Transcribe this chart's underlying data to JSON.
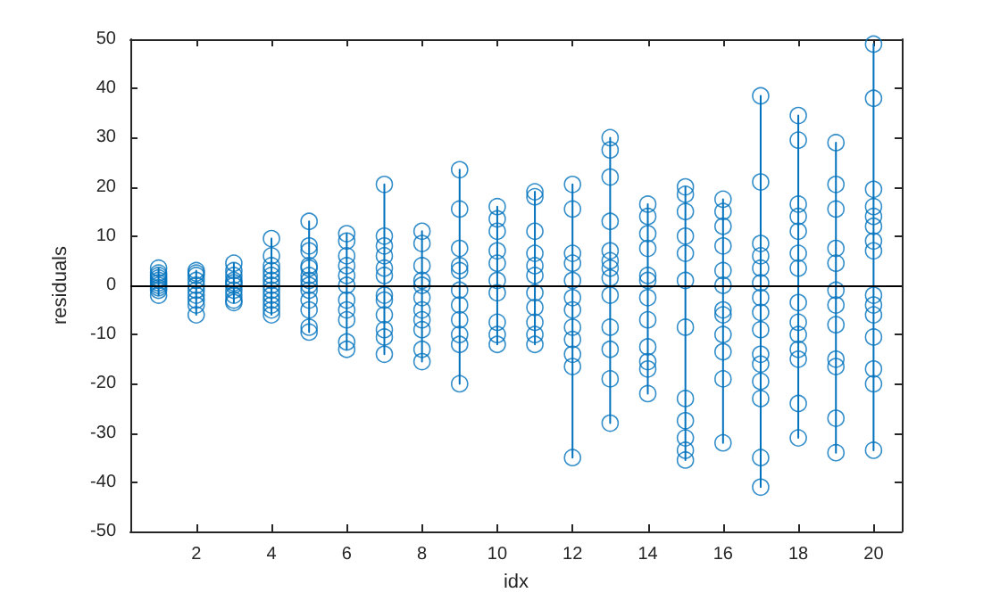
{
  "chart_data": {
    "type": "scatter",
    "xlabel": "idx",
    "ylabel": "residuals",
    "marker": "circle",
    "grid": false,
    "xlim": [
      0.25,
      20.75
    ],
    "xticks": [
      2,
      4,
      6,
      8,
      10,
      12,
      14,
      16,
      18,
      20
    ],
    "ylim": [
      -50,
      50
    ],
    "yticks": [
      -50,
      -40,
      -30,
      -20,
      -10,
      0,
      10,
      20,
      30,
      40,
      50
    ],
    "ref_lines": [
      {
        "axis": "y",
        "value": 0,
        "color": "#000000"
      }
    ],
    "series": [
      {
        "color": "#0072bd",
        "x": [
          1,
          1,
          1,
          1,
          1,
          1,
          1,
          1,
          1,
          1,
          2,
          2,
          2,
          2,
          2,
          2,
          2,
          2,
          2,
          2,
          3,
          3,
          3,
          3,
          3,
          3,
          3,
          3,
          3,
          3,
          4,
          4,
          4,
          4,
          4,
          4,
          4,
          4,
          4,
          4,
          4,
          4,
          4,
          5,
          5,
          5,
          5,
          5,
          5,
          5,
          5,
          5,
          5,
          5,
          5,
          5,
          6,
          6,
          6,
          6,
          6,
          6,
          6,
          6,
          6,
          6,
          6,
          7,
          7,
          7,
          7,
          7,
          7,
          7,
          7,
          7,
          7,
          7,
          7,
          8,
          8,
          8,
          8,
          8,
          8,
          8,
          8,
          8,
          8,
          8,
          9,
          9,
          9,
          9,
          9,
          9,
          9,
          9,
          9,
          9,
          9,
          10,
          10,
          10,
          10,
          10,
          10,
          10,
          10,
          10,
          10,
          11,
          11,
          11,
          11,
          11,
          11,
          11,
          11,
          11,
          11,
          11,
          12,
          12,
          12,
          12,
          12,
          12,
          12,
          12,
          12,
          12,
          12,
          12,
          13,
          13,
          13,
          13,
          13,
          13,
          13,
          13,
          13,
          13,
          13,
          13,
          13,
          14,
          14,
          14,
          14,
          14,
          14,
          14,
          14,
          14,
          14,
          14,
          14,
          15,
          15,
          15,
          15,
          15,
          15,
          15,
          15,
          15,
          15,
          15,
          15,
          16,
          16,
          16,
          16,
          16,
          16,
          16,
          16,
          16,
          16,
          16,
          16,
          17,
          17,
          17,
          17,
          17,
          17,
          17,
          17,
          17,
          17,
          17,
          17,
          17,
          17,
          17,
          18,
          18,
          18,
          18,
          18,
          18,
          18,
          18,
          18,
          18,
          18,
          18,
          18,
          18,
          19,
          19,
          19,
          19,
          19,
          19,
          19,
          19,
          19,
          19,
          19,
          19,
          20,
          20,
          20,
          20,
          20,
          20,
          20,
          20,
          20,
          20,
          20,
          20,
          20,
          20,
          20
        ],
        "values": [
          3.5,
          2.5,
          2,
          1.5,
          1,
          0.5,
          0,
          -0.5,
          -1,
          -2,
          3,
          2.5,
          2,
          1,
          0,
          -1,
          -2,
          -3,
          -4,
          -6,
          4.5,
          3,
          2,
          1,
          0.5,
          0,
          -1,
          -2,
          -3,
          -3.5,
          9.5,
          6,
          4,
          3,
          2,
          1,
          0,
          -1,
          -2,
          -3,
          -4,
          -5,
          -6,
          13,
          8,
          7,
          4,
          3.5,
          2,
          1,
          0,
          -1,
          -3,
          -5,
          -8.5,
          -9.5,
          10.5,
          9,
          6,
          4,
          2,
          0,
          -3,
          -5,
          -7,
          -11.5,
          -13,
          20.5,
          10,
          8,
          6,
          3.5,
          2,
          -2,
          -3,
          -6,
          -9,
          -10.5,
          -14,
          11,
          8.5,
          4,
          1,
          0,
          -2.5,
          -5,
          -7,
          -9,
          -13,
          -15.5,
          23.5,
          15.5,
          7.5,
          4,
          3,
          -1,
          -4,
          -7,
          -10,
          -12,
          -20,
          16,
          13.5,
          11,
          7,
          4.5,
          1,
          -1.5,
          -7.5,
          -10,
          -12,
          19,
          18,
          11,
          6.5,
          4,
          2,
          -1.5,
          -4.5,
          -7.5,
          -10,
          -12,
          20.5,
          15.5,
          6.5,
          4.5,
          1,
          -2.5,
          -5,
          -8.5,
          -11,
          -14,
          -16.5,
          -35,
          30,
          27.5,
          22,
          13,
          7,
          5,
          3.5,
          1.5,
          -2,
          -8.5,
          -13,
          -19,
          -28,
          16.5,
          14,
          10.5,
          7.5,
          2,
          1,
          -2.5,
          -7,
          -12.5,
          -15.5,
          -17,
          -22,
          20,
          18.5,
          15,
          10,
          6.5,
          1,
          -8.5,
          -23,
          -27.5,
          -31,
          -33.5,
          -35.5,
          17.5,
          15,
          12,
          8,
          3,
          0,
          -5,
          -6,
          -10,
          -13.5,
          -19,
          -32,
          38.5,
          21,
          8.5,
          6,
          3.5,
          0.5,
          -2.5,
          -5.5,
          -9,
          -14,
          -16,
          -19.5,
          -23,
          -35,
          -41,
          34.5,
          29.5,
          16.5,
          14,
          11,
          6.5,
          3.5,
          -3.5,
          -7.5,
          -10,
          -13,
          -15,
          -24,
          -31,
          29,
          20.5,
          15.5,
          7.5,
          4.5,
          -1,
          -4,
          -8,
          -15,
          -16.5,
          -27,
          -34,
          49,
          38,
          19.5,
          16,
          14,
          12,
          9,
          7,
          -2,
          -4,
          -6,
          -10.5,
          -17,
          -20,
          -33.5
        ]
      },
      {
        "type": "line",
        "color": "#0072bd",
        "marker": "none",
        "x": [
          1,
          1,
          null,
          2,
          2,
          null,
          3,
          3,
          null,
          4,
          4,
          null,
          5,
          5,
          null,
          6,
          6,
          null,
          7,
          7,
          null,
          8,
          8,
          null,
          9,
          9,
          null,
          10,
          10,
          null,
          11,
          11,
          null,
          12,
          12,
          null,
          13,
          13,
          null,
          14,
          14,
          null,
          15,
          15,
          null,
          16,
          16,
          null,
          17,
          17,
          null,
          18,
          18,
          null,
          19,
          19,
          null,
          20,
          20
        ],
        "values": [
          -2,
          3.5,
          null,
          -6,
          3,
          null,
          -3.5,
          4.5,
          null,
          -6,
          9.5,
          null,
          -9.5,
          13,
          null,
          -13,
          10.5,
          null,
          -14,
          20.5,
          null,
          -15.5,
          11,
          null,
          -20,
          23.5,
          null,
          -12,
          16,
          null,
          -12,
          19,
          null,
          -35,
          20.5,
          null,
          -28,
          30,
          null,
          -22,
          16.5,
          null,
          -35.5,
          20,
          null,
          -32,
          17.5,
          null,
          -41,
          38.5,
          null,
          -31,
          34.5,
          null,
          -34,
          29,
          null,
          -33.5,
          49
        ]
      }
    ]
  }
}
